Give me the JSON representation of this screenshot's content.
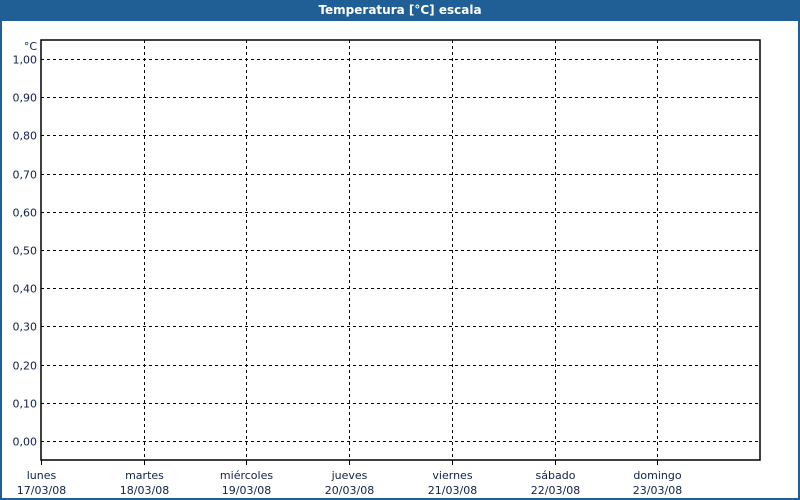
{
  "window": {
    "title": "Temperatura [°C] escala",
    "accent": "#1f5f96"
  },
  "chart_data": {
    "type": "line",
    "title": "Temperatura [°C] escala",
    "ylabel": "°C",
    "ylim": [
      -0.05,
      1.05
    ],
    "yticks": [
      0.0,
      0.1,
      0.2,
      0.3,
      0.4,
      0.5,
      0.6,
      0.7,
      0.8,
      0.9,
      1.0
    ],
    "ytick_labels": [
      "0,00",
      "0,10",
      "0,20",
      "0,30",
      "0,40",
      "0,50",
      "0,60",
      "0,70",
      "0,80",
      "0,90",
      "1,00"
    ],
    "xlim": [
      "17/03/08",
      "24/03/08"
    ],
    "xticks": [
      {
        "day": "lunes",
        "date": "17/03/08"
      },
      {
        "day": "martes",
        "date": "18/03/08"
      },
      {
        "day": "miércoles",
        "date": "19/03/08"
      },
      {
        "day": "jueves",
        "date": "20/03/08"
      },
      {
        "day": "viernes",
        "date": "21/03/08"
      },
      {
        "day": "sábado",
        "date": "22/03/08"
      },
      {
        "day": "domingo",
        "date": "23/03/08"
      }
    ],
    "grid": true,
    "series": []
  }
}
